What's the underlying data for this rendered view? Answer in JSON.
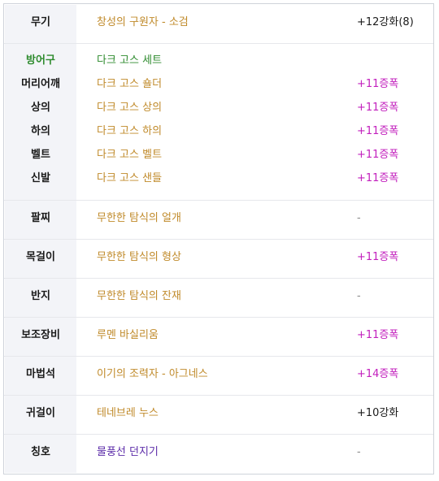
{
  "colors": {
    "unique": "#c08a2a",
    "set": "#2e8b2e",
    "epic": "#5a2aa8",
    "star_force": "#c21fbd",
    "normal": "#1a1a1a",
    "none": "#8a8a8a"
  },
  "rows": [
    {
      "label": "무기",
      "item": "창성의 구원자 - 소검",
      "enhance": "+12강화(8)"
    },
    {
      "set_label": "방어구",
      "set_name": "다크 고스 세트"
    },
    {
      "label": "머리어깨",
      "item": "다크 고스 숄더",
      "enhance": "+11증폭"
    },
    {
      "label": "상의",
      "item": "다크 고스 상의",
      "enhance": "+11증폭"
    },
    {
      "label": "하의",
      "item": "다크 고스 하의",
      "enhance": "+11증폭"
    },
    {
      "label": "벨트",
      "item": "다크 고스 벨트",
      "enhance": "+11증폭"
    },
    {
      "label": "신발",
      "item": "다크 고스 샌들",
      "enhance": "+11증폭"
    },
    {
      "label": "팔찌",
      "item": "무한한 탐식의 얼개",
      "enhance": "-"
    },
    {
      "label": "목걸이",
      "item": "무한한 탐식의 형상",
      "enhance": "+11증폭"
    },
    {
      "label": "반지",
      "item": "무한한 탐식의 잔재",
      "enhance": "-"
    },
    {
      "label": "보조장비",
      "item": "루멘 바실리움",
      "enhance": "+11증폭"
    },
    {
      "label": "마법석",
      "item": "이기의 조력자 - 아그네스",
      "enhance": "+14증폭"
    },
    {
      "label": "귀걸이",
      "item": "테네브레 누스",
      "enhance": "+10강화"
    },
    {
      "label": "칭호",
      "item": "물풍선 던지기",
      "enhance": "-"
    }
  ]
}
